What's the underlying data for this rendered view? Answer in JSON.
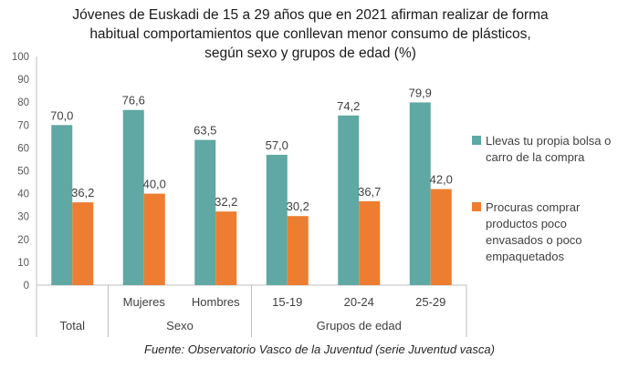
{
  "chart_data": {
    "type": "bar",
    "title_lines": [
      "Jóvenes de Euskadi de 15 a 29 años que en 2021 afirman realizar de forma",
      "habitual comportamientos que conllevan menor consumo de plásticos,",
      "según sexo y grupos de edad (%)"
    ],
    "categories": [
      "Total",
      "Mujeres",
      "Hombres",
      "15-19",
      "20-24",
      "25-29"
    ],
    "groups": [
      {
        "label": "",
        "categories": [
          "Total"
        ]
      },
      {
        "label": "Sexo",
        "categories": [
          "Mujeres",
          "Hombres"
        ]
      },
      {
        "label": "Grupos de edad",
        "categories": [
          "15-19",
          "20-24",
          "25-29"
        ]
      }
    ],
    "series": [
      {
        "name": "Llevas tu propia bolsa o carro de la compra",
        "color": "#5fa8a3",
        "values": [
          70.0,
          76.6,
          63.5,
          57.0,
          74.2,
          79.9
        ],
        "labels": [
          "70,0",
          "76,6",
          "63,5",
          "57,0",
          "74,2",
          "79,9"
        ]
      },
      {
        "name": "Procuras comprar productos poco envasados o poco empaquetados",
        "color": "#ed7d31",
        "values": [
          36.2,
          40.0,
          32.2,
          30.2,
          36.7,
          42.0
        ],
        "labels": [
          "36,2",
          "40,0",
          "32,2",
          "30,2",
          "36,7",
          "42,0"
        ]
      }
    ],
    "ylim": [
      0,
      100
    ],
    "yticks": [
      0,
      10,
      20,
      30,
      40,
      50,
      60,
      70,
      80,
      90,
      100
    ],
    "grid": false,
    "legend_position": "right"
  },
  "legend": {
    "item1_lines": [
      "Llevas tu propia bolsa o",
      "carro de la compra"
    ],
    "item2_lines": [
      "Procuras comprar",
      "productos poco",
      "envasados o poco",
      "empaquetados"
    ]
  },
  "source": "Fuente: Observatorio Vasco de la Juventud (serie Juventud vasca)"
}
